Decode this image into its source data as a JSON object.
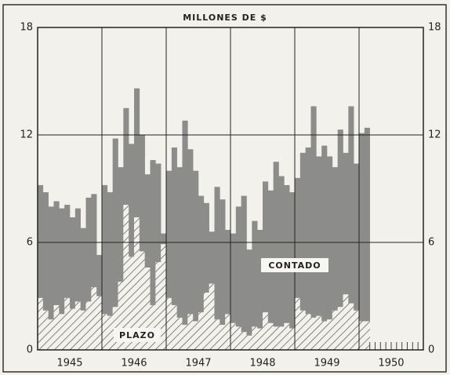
{
  "chart_data": {
    "type": "stacked-step",
    "title": "MILLONES DE $",
    "years": [
      "1945",
      "1946",
      "1947",
      "1948",
      "1949",
      "1950"
    ],
    "ylim": [
      0,
      18
    ],
    "yticks": [
      0,
      6,
      12,
      18
    ],
    "grid": true,
    "series": [
      {
        "name": "PLAZO",
        "color": "#555555",
        "values": [
          2.9,
          2.2,
          1.7,
          2.5,
          2.0,
          2.9,
          2.3,
          2.7,
          2.2,
          2.7,
          3.5,
          3.0,
          2.0,
          1.9,
          2.4,
          3.8,
          8.1,
          5.2,
          7.4,
          5.5,
          4.6,
          2.5,
          4.9,
          5.9,
          2.9,
          2.5,
          1.8,
          1.4,
          2.0,
          1.6,
          2.1,
          3.2,
          3.7,
          1.7,
          1.4,
          2.0,
          1.5,
          1.3,
          1.0,
          0.8,
          1.3,
          1.2,
          2.1,
          1.5,
          1.3,
          1.3,
          1.5,
          1.2,
          2.9,
          2.2,
          2.0,
          1.8,
          1.9,
          1.6,
          1.7,
          2.2,
          2.4,
          3.1,
          2.6,
          2.2,
          1.6,
          1.6
        ]
      },
      {
        "name": "CONTADO",
        "color": "#8c8c8a",
        "values": [
          6.3,
          6.6,
          6.3,
          5.8,
          5.9,
          5.2,
          5.1,
          5.2,
          4.6,
          5.8,
          5.2,
          2.3,
          7.2,
          6.9,
          9.4,
          6.4,
          5.4,
          6.3,
          7.2,
          6.5,
          5.2,
          8.1,
          5.5,
          0.6,
          7.1,
          8.8,
          8.4,
          11.4,
          9.2,
          8.4,
          6.5,
          5.0,
          2.9,
          7.4,
          7.0,
          4.7,
          5.0,
          6.7,
          7.6,
          4.8,
          5.9,
          5.5,
          7.3,
          7.4,
          9.2,
          8.4,
          7.7,
          7.6,
          6.7,
          8.8,
          9.3,
          11.8,
          8.9,
          9.8,
          9.1,
          8.0,
          9.9,
          7.9,
          11.0,
          8.2,
          10.5,
          10.8
        ]
      }
    ]
  }
}
